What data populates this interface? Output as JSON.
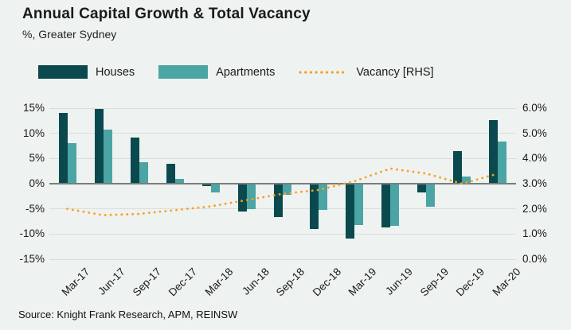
{
  "header": {
    "title": "Annual Capital Growth & Total Vacancy",
    "subtitle": "%, Greater Sydney"
  },
  "legend": [
    {
      "label": "Houses",
      "swatch": "bar",
      "color": "#0a4a4f"
    },
    {
      "label": "Apartments",
      "swatch": "bar",
      "color": "#4ba5a4"
    },
    {
      "label": "Vacancy [RHS]",
      "swatch": "dotted-line",
      "color": "#f9a01b"
    }
  ],
  "source": "Source: Knight Frank Research, APM, REINSW",
  "colors": {
    "background": "#eef2f1",
    "houses": "#0a4a4f",
    "apartments": "#4ba5a4",
    "vacancy": "#f9a01b",
    "gridline": "#d9dddc",
    "zeroline": "#787e7d"
  },
  "chart_data": {
    "type": "bar",
    "title": "Annual Capital Growth & Total Vacancy",
    "subtitle": "%, Greater Sydney",
    "categories": [
      "Mar-17",
      "Jun-17",
      "Sep-17",
      "Dec-17",
      "Mar-18",
      "Jun-18",
      "Sep-18",
      "Dec-18",
      "Mar-19",
      "Jun-19",
      "Sep-19",
      "Dec-19",
      "Mar-20"
    ],
    "series": [
      {
        "name": "Houses",
        "type": "bar",
        "axis": "left",
        "color": "#0a4a4f",
        "values": [
          14.1,
          14.8,
          9.2,
          4.0,
          -0.5,
          -5.6,
          -6.6,
          -9.0,
          -10.9,
          -8.7,
          -1.7,
          6.4,
          12.7
        ]
      },
      {
        "name": "Apartments",
        "type": "bar",
        "axis": "left",
        "color": "#4ba5a4",
        "values": [
          8.1,
          10.8,
          4.3,
          1.0,
          -1.7,
          -5.1,
          -2.2,
          -5.2,
          -8.2,
          -8.4,
          -4.6,
          1.4,
          8.3
        ]
      },
      {
        "name": "Vacancy [RHS]",
        "type": "line",
        "style": "dotted",
        "axis": "right",
        "color": "#f9a01b",
        "values": [
          2.0,
          1.75,
          1.8,
          1.95,
          2.1,
          2.35,
          2.6,
          2.75,
          3.1,
          3.6,
          3.4,
          3.0,
          3.4
        ]
      }
    ],
    "left_axis": {
      "ticks": [
        "15%",
        "10%",
        "5%",
        "0%",
        "-5%",
        "-10%",
        "-15%"
      ],
      "min": -15,
      "max": 15,
      "step": 5
    },
    "right_axis": {
      "ticks": [
        "6.0%",
        "5.0%",
        "4.0%",
        "3.0%",
        "2.0%",
        "1.0%",
        "0.0%"
      ],
      "min": 0,
      "max": 6,
      "step": 1
    },
    "grid": true,
    "legend_position": "top"
  }
}
